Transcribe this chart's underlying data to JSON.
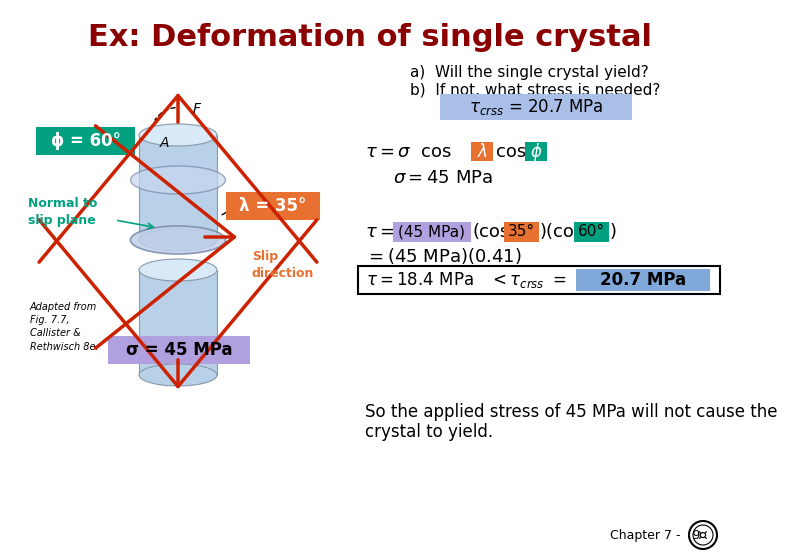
{
  "title": "Ex: Deformation of single crystal",
  "title_color": "#8B0000",
  "title_fontsize": 22,
  "bg_color": "#FFFFFF",
  "question_a": "a)  Will the single crystal yield?",
  "question_b": "b)  If not, what stress is needed?",
  "phi_label": "ϕ = 60°",
  "lambda_label": "λ = 35°",
  "normal_label": "Normal to\nslip plane",
  "adapted_text": "Adapted from\nFig. 7.7,\nCallister &\nRethwisch 8e.",
  "sigma_box": "σ = 45 MPa",
  "conclusion1": "So the applied stress of 45 MPa will not cause the",
  "conclusion2": "crystal to yield.",
  "chapter": "Chapter 7 -   9",
  "color_green": "#00A080",
  "color_orange": "#E87030",
  "color_blue_light": "#AABFE8",
  "color_purple_light": "#B0A0E0",
  "color_blue_box": "#80A8D8",
  "color_red": "#CC2200",
  "cyl_color": "#B8D0E8",
  "cyl_top": "#D8EAF8"
}
